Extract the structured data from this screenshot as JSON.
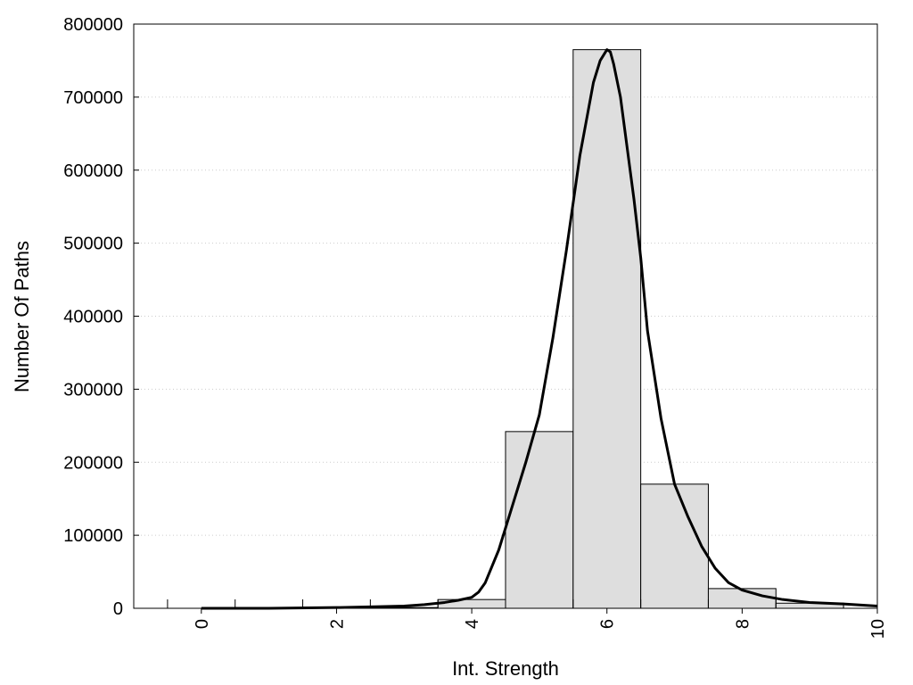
{
  "chart_data": {
    "type": "bar",
    "xlabel": "Int. Strength",
    "ylabel": "Number Of Paths",
    "xlim": [
      -1,
      10
    ],
    "ylim": [
      0,
      800000
    ],
    "x_ticks": [
      "0",
      "2",
      "4",
      "6",
      "8",
      "10"
    ],
    "y_ticks": [
      "0",
      "100000",
      "200000",
      "300000",
      "400000",
      "500000",
      "600000",
      "700000",
      "800000"
    ],
    "grid": "horizontal-dotted",
    "bars": [
      {
        "x": 0,
        "value": 0
      },
      {
        "x": 1,
        "value": 0
      },
      {
        "x": 2,
        "value": 0
      },
      {
        "x": 3,
        "value": 1000
      },
      {
        "x": 4,
        "value": 12000
      },
      {
        "x": 5,
        "value": 242000
      },
      {
        "x": 6,
        "value": 765000
      },
      {
        "x": 7,
        "value": 170000
      },
      {
        "x": 8,
        "value": 27000
      },
      {
        "x": 9,
        "value": 7000
      }
    ],
    "curve": {
      "x": [
        0,
        1,
        2,
        2.5,
        3,
        3.3,
        3.6,
        3.8,
        4.0,
        4.1,
        4.2,
        4.4,
        4.6,
        4.8,
        5.0,
        5.2,
        5.4,
        5.6,
        5.8,
        5.9,
        6.0,
        6.05,
        6.1,
        6.2,
        6.3,
        6.4,
        6.5,
        6.6,
        6.8,
        7.0,
        7.2,
        7.4,
        7.6,
        7.8,
        8.0,
        8.3,
        8.6,
        9.0,
        9.5,
        10.0
      ],
      "y": [
        0,
        0,
        1000,
        2000,
        3000,
        5000,
        8000,
        11000,
        15000,
        22000,
        35000,
        80000,
        140000,
        200000,
        265000,
        370000,
        490000,
        620000,
        720000,
        750000,
        765000,
        762000,
        745000,
        700000,
        630000,
        560000,
        480000,
        380000,
        260000,
        170000,
        125000,
        85000,
        55000,
        35000,
        25000,
        17000,
        12000,
        8000,
        6000,
        3000
      ]
    }
  }
}
